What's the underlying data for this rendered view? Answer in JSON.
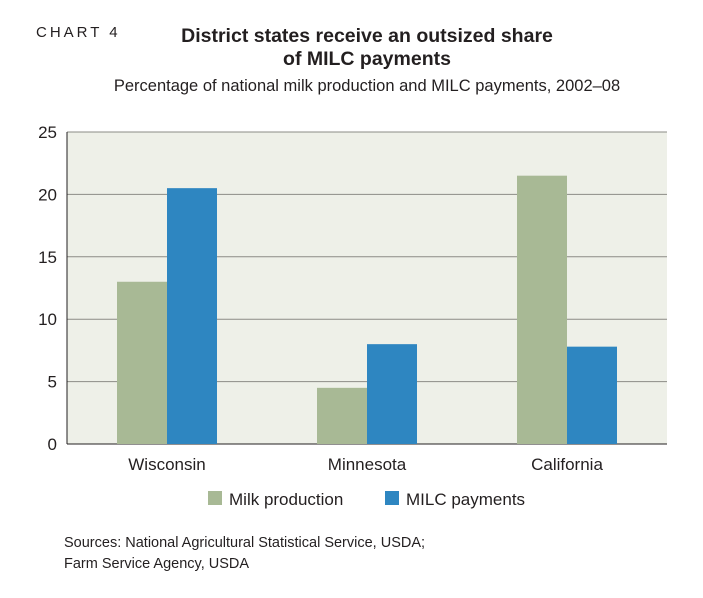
{
  "header": {
    "chart_label": "CHART 4",
    "title_line1": "District states receive an outsized share",
    "title_line2": "of MILC payments",
    "subtitle": "Percentage of national milk production and MILC payments, 2002–08"
  },
  "footer": {
    "sources_line1": "Sources: National Agricultural Statistical Service, USDA;",
    "sources_line2": "Farm Service Agency, USDA"
  },
  "chart_data": {
    "type": "bar",
    "categories": [
      "Wisconsin",
      "Minnesota",
      "California"
    ],
    "series": [
      {
        "name": "Milk production",
        "values": [
          13.0,
          4.5,
          21.5
        ],
        "color": "#a8b995"
      },
      {
        "name": "MILC payments",
        "values": [
          20.5,
          8.0,
          7.8
        ],
        "color": "#2e86c1"
      }
    ],
    "title": "",
    "xlabel": "",
    "ylabel": "",
    "ylim": [
      0,
      25
    ],
    "yticks": [
      0,
      5,
      10,
      15,
      20,
      25
    ],
    "grid": true,
    "legend": "bottom",
    "plot_background": "#eef0e8",
    "grid_color": "#8b8b86"
  }
}
